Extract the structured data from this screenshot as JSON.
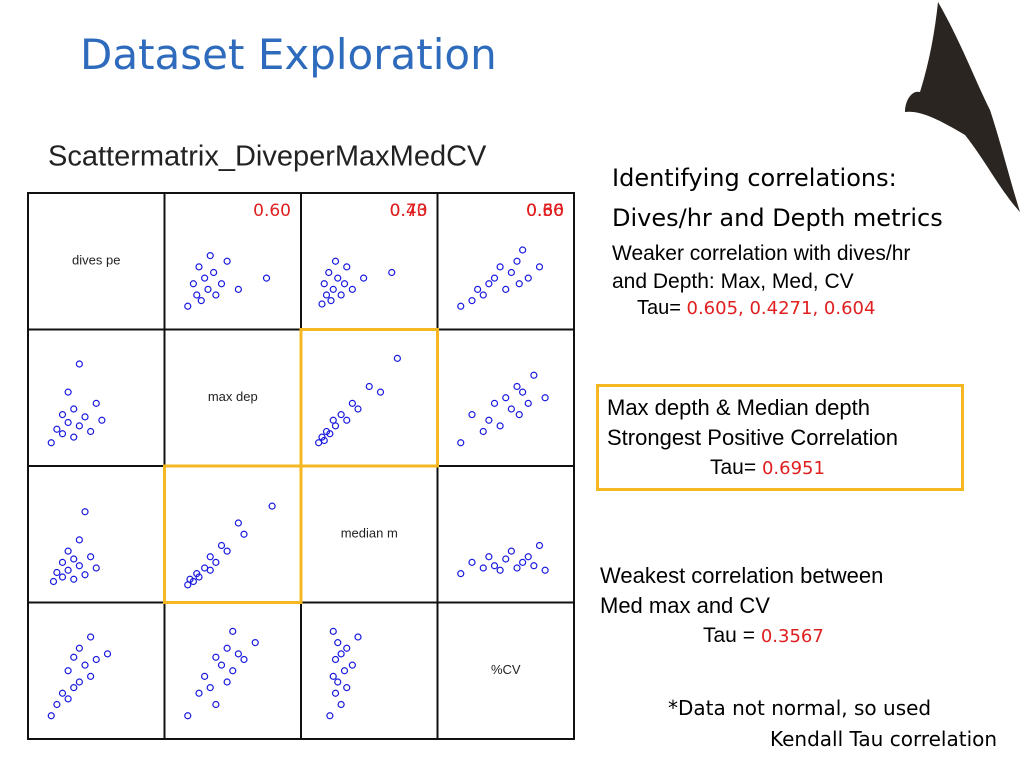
{
  "title": "Dataset Exploration",
  "figure": {
    "title": "Scattermatrix_DiveperMaxMedCV",
    "variables": [
      "dives pe",
      "max dep",
      "median m",
      "%CV"
    ],
    "correlations": [
      "0.60",
      "0.43",
      "0.60",
      "0.70",
      "0.60",
      "0.36"
    ],
    "pairs": [
      {
        "x": [
          10,
          15,
          18,
          20,
          22,
          25,
          28,
          30,
          33,
          35,
          40,
          45,
          55,
          80
        ],
        "y": [
          10,
          30,
          20,
          45,
          15,
          35,
          25,
          55,
          40,
          20,
          30,
          50,
          25,
          35
        ]
      },
      {
        "x": [
          8,
          10,
          12,
          14,
          16,
          18,
          20,
          22,
          25,
          28,
          30,
          35,
          45,
          70
        ],
        "y": [
          12,
          30,
          20,
          40,
          15,
          25,
          50,
          35,
          20,
          30,
          45,
          25,
          35,
          40
        ]
      },
      {
        "x": [
          10,
          20,
          25,
          30,
          35,
          40,
          45,
          50,
          55,
          60,
          62,
          65,
          70,
          80
        ],
        "y": [
          10,
          15,
          25,
          20,
          30,
          35,
          45,
          25,
          40,
          50,
          30,
          60,
          35,
          45
        ]
      },
      {
        "x": [
          5,
          8,
          10,
          12,
          15,
          18,
          20,
          25,
          30,
          35,
          40,
          50,
          60,
          75
        ],
        "y": [
          10,
          15,
          12,
          20,
          18,
          30,
          25,
          35,
          30,
          45,
          40,
          60,
          55,
          85
        ]
      },
      {
        "x": [
          10,
          20,
          30,
          35,
          40,
          45,
          50,
          55,
          60,
          62,
          65,
          70,
          75,
          85
        ],
        "y": [
          10,
          35,
          20,
          30,
          45,
          25,
          50,
          40,
          60,
          35,
          55,
          45,
          70,
          50
        ]
      },
      {
        "x": [
          10,
          20,
          30,
          35,
          40,
          45,
          50,
          55,
          60,
          65,
          70,
          75,
          80,
          85
        ],
        "y": [
          15,
          25,
          20,
          30,
          22,
          18,
          28,
          35,
          20,
          25,
          30,
          22,
          40,
          18
        ]
      }
    ]
  },
  "notes": {
    "heading": [
      "Identifying correlations:",
      "Dives/hr and Depth metrics"
    ],
    "weaker": [
      "Weaker correlation with dives/hr",
      "and Depth: Max, Med, CV"
    ],
    "weaker_tau": {
      "label": "Tau=",
      "value": "0.605, 0.4271, 0.604"
    },
    "strongest": {
      "lines": [
        "Max depth & Median depth",
        "Strongest Positive Correlation"
      ],
      "tau": {
        "label": "Tau=",
        "value": "0.6951"
      }
    },
    "weakest": {
      "lines": [
        "Weakest correlation between",
        "Med max and CV"
      ],
      "tau": {
        "label": "Tau =",
        "value": "0.3567"
      }
    },
    "footnote": [
      "*Data not normal, so used",
      "Kendall Tau correlation"
    ]
  }
}
